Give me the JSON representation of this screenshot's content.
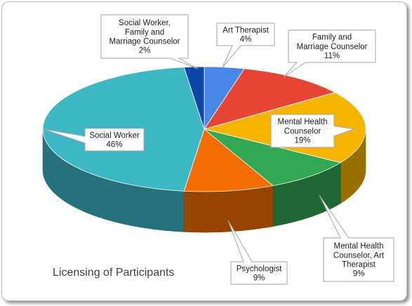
{
  "chart_data": {
    "type": "pie",
    "title": "Licensing of Participants",
    "categories": [
      "Art Therapist",
      "Family and Marriage Counselor",
      "Mental Health Counselor",
      "Mental Health Counselor, Art Therapist",
      "Psychologist",
      "Social Worker",
      "Social Worker, Family and Marriage Counselor"
    ],
    "values": [
      4,
      11,
      19,
      9,
      9,
      46,
      2
    ],
    "labels": [
      {
        "lines": [
          "Art Therapist"
        ],
        "pct": "4%"
      },
      {
        "lines": [
          "Family and",
          "Marriage Counselor"
        ],
        "pct": "11%"
      },
      {
        "lines": [
          "Mental Health",
          "Counselor"
        ],
        "pct": "19%"
      },
      {
        "lines": [
          "Mental Health",
          "Counselor, Art",
          "Therapist"
        ],
        "pct": "9%"
      },
      {
        "lines": [
          "Psychologist"
        ],
        "pct": "9%"
      },
      {
        "lines": [
          "Social Worker"
        ],
        "pct": "46%"
      },
      {
        "lines": [
          "Social Worker,",
          "Family and",
          "Marriage Counselor"
        ],
        "pct": "2%"
      }
    ],
    "colors": [
      "#4a86e8",
      "#e64535",
      "#f6b400",
      "#33a853",
      "#f46d00",
      "#3eb8c4",
      "#0f46aa"
    ],
    "legend": "none"
  }
}
